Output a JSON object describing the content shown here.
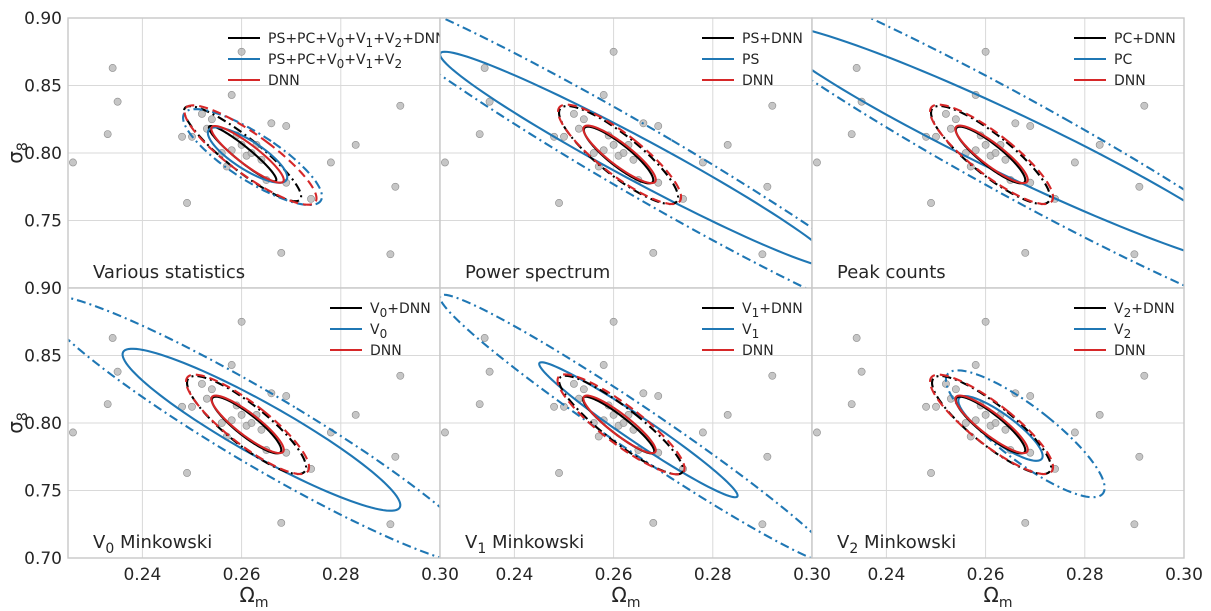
{
  "colors": {
    "black": "#000000",
    "blue": "#1f77b4",
    "red": "#d62728",
    "grid": "#d9d9d9",
    "frame": "#c8c8c8",
    "points": "#b3b3b3"
  },
  "chart_data": {
    "type": "scatter",
    "description_free": true,
    "xlabel": "Ωm",
    "ylabel": "σ8",
    "xlim": [
      0.225,
      0.3
    ],
    "ylim_top_row": [
      0.7,
      0.9
    ],
    "ylim_bottom_row": [
      0.7,
      0.9
    ],
    "x_ticks": [
      "0.24",
      "0.26",
      "0.28",
      "0.30"
    ],
    "y_ticks": [
      "0.70",
      "0.75",
      "0.80",
      "0.85",
      "0.90"
    ],
    "top_row_y_ticks": [
      "0.75",
      "0.80",
      "0.85",
      "0.90"
    ],
    "simulation_points": [
      [
        0.226,
        0.793
      ],
      [
        0.233,
        0.814
      ],
      [
        0.234,
        0.863
      ],
      [
        0.235,
        0.838
      ],
      [
        0.248,
        0.812
      ],
      [
        0.249,
        0.763
      ],
      [
        0.25,
        0.812
      ],
      [
        0.252,
        0.829
      ],
      [
        0.253,
        0.818
      ],
      [
        0.254,
        0.825
      ],
      [
        0.256,
        0.8
      ],
      [
        0.257,
        0.79
      ],
      [
        0.258,
        0.843
      ],
      [
        0.258,
        0.802
      ],
      [
        0.259,
        0.813
      ],
      [
        0.26,
        0.806
      ],
      [
        0.26,
        0.875
      ],
      [
        0.261,
        0.798
      ],
      [
        0.262,
        0.8
      ],
      [
        0.263,
        0.806
      ],
      [
        0.264,
        0.795
      ],
      [
        0.265,
        0.78
      ],
      [
        0.266,
        0.822
      ],
      [
        0.268,
        0.726
      ],
      [
        0.269,
        0.778
      ],
      [
        0.269,
        0.82
      ],
      [
        0.274,
        0.766
      ],
      [
        0.278,
        0.793
      ],
      [
        0.283,
        0.806
      ],
      [
        0.29,
        0.725
      ],
      [
        0.291,
        0.775
      ],
      [
        0.292,
        0.835
      ]
    ],
    "panels": [
      {
        "label": "Various statistics",
        "legend": [
          {
            "text": "PS+PC+V0+V1+V2+DNN",
            "color": "black"
          },
          {
            "text": "PS+PC+V0+V1+V2",
            "color": "blue"
          },
          {
            "text": "DNN",
            "color": "red"
          }
        ],
        "contours": [
          {
            "color": "black",
            "style": "solid",
            "cx": 0.2602,
            "cy": 0.7995,
            "sx": 0.0068,
            "sy": 0.0205,
            "rho": -0.94
          },
          {
            "color": "black",
            "style": "dashdot",
            "cx": 0.2602,
            "cy": 0.7995,
            "sx": 0.0118,
            "sy": 0.0352,
            "rho": -0.9
          },
          {
            "color": "blue",
            "style": "solid",
            "cx": 0.2612,
            "cy": 0.7985,
            "sx": 0.008,
            "sy": 0.0205,
            "rho": -0.8
          },
          {
            "color": "blue",
            "style": "dashdot",
            "cx": 0.2622,
            "cy": 0.797,
            "sx": 0.014,
            "sy": 0.0355,
            "rho": -0.82
          },
          {
            "color": "red",
            "style": "solid",
            "cx": 0.2612,
            "cy": 0.799,
            "sx": 0.0073,
            "sy": 0.021,
            "rho": -0.9
          },
          {
            "color": "red",
            "style": "dashdash",
            "cx": 0.2618,
            "cy": 0.7985,
            "sx": 0.0133,
            "sy": 0.0368,
            "rho": -0.87
          }
        ]
      },
      {
        "label": "Power spectrum",
        "legend": [
          {
            "text": "PS+DNN",
            "color": "black"
          },
          {
            "text": "PS",
            "color": "blue"
          },
          {
            "text": "DNN",
            "color": "red"
          }
        ],
        "contours": [
          {
            "color": "blue",
            "style": "solid",
            "cx": 0.265,
            "cy": 0.795,
            "sx": 0.04,
            "sy": 0.08,
            "rho": -0.975
          },
          {
            "color": "blue",
            "style": "dashdot",
            "cx": 0.265,
            "cy": 0.795,
            "sx": 0.06,
            "sy": 0.13,
            "rho": -0.975
          },
          {
            "color": "black",
            "style": "solid",
            "cx": 0.261,
            "cy": 0.7985,
            "sx": 0.007,
            "sy": 0.021,
            "rho": -0.88
          },
          {
            "color": "black",
            "style": "dashdot",
            "cx": 0.261,
            "cy": 0.7985,
            "sx": 0.012,
            "sy": 0.0363,
            "rho": -0.86
          },
          {
            "color": "red",
            "style": "solid",
            "cx": 0.2612,
            "cy": 0.799,
            "sx": 0.0073,
            "sy": 0.0213,
            "rho": -0.88
          },
          {
            "color": "red",
            "style": "dashdash",
            "cx": 0.2612,
            "cy": 0.799,
            "sx": 0.0124,
            "sy": 0.0368,
            "rho": -0.86
          }
        ]
      },
      {
        "label": "Peak counts",
        "legend": [
          {
            "text": "PC+DNN",
            "color": "black"
          },
          {
            "text": "PC",
            "color": "blue"
          },
          {
            "text": "DNN",
            "color": "red"
          }
        ],
        "contours": [
          {
            "color": "blue",
            "style": "solid",
            "cx": 0.266,
            "cy": 0.805,
            "sx": 0.05,
            "sy": 0.09,
            "rho": -0.96
          },
          {
            "color": "blue",
            "style": "dashdot",
            "cx": 0.266,
            "cy": 0.805,
            "sx": 0.07,
            "sy": 0.145,
            "rho": -0.96
          },
          {
            "color": "black",
            "style": "solid",
            "cx": 0.261,
            "cy": 0.7985,
            "sx": 0.007,
            "sy": 0.021,
            "rho": -0.88
          },
          {
            "color": "black",
            "style": "dashdot",
            "cx": 0.261,
            "cy": 0.7985,
            "sx": 0.012,
            "sy": 0.0363,
            "rho": -0.86
          },
          {
            "color": "red",
            "style": "solid",
            "cx": 0.2612,
            "cy": 0.799,
            "sx": 0.0073,
            "sy": 0.0213,
            "rho": -0.88
          },
          {
            "color": "red",
            "style": "dashdash",
            "cx": 0.2612,
            "cy": 0.799,
            "sx": 0.0124,
            "sy": 0.0368,
            "rho": -0.86
          }
        ]
      },
      {
        "label": "V0 Minkowski",
        "label_main": "V",
        "label_sub": "0",
        "label_rest": " Minkowski",
        "legend": [
          {
            "text": "V0+DNN",
            "color": "black"
          },
          {
            "text": "V0",
            "color": "blue"
          },
          {
            "text": "DNN",
            "color": "red"
          }
        ],
        "contours": [
          {
            "color": "blue",
            "style": "solid",
            "cx": 0.264,
            "cy": 0.795,
            "sx": 0.028,
            "sy": 0.06,
            "rho": -0.93
          },
          {
            "color": "blue",
            "style": "dashdot",
            "cx": 0.264,
            "cy": 0.795,
            "sx": 0.045,
            "sy": 0.1,
            "rho": -0.95
          },
          {
            "color": "black",
            "style": "solid",
            "cx": 0.261,
            "cy": 0.7985,
            "sx": 0.007,
            "sy": 0.021,
            "rho": -0.88
          },
          {
            "color": "black",
            "style": "dashdot",
            "cx": 0.261,
            "cy": 0.7985,
            "sx": 0.012,
            "sy": 0.0363,
            "rho": -0.86
          },
          {
            "color": "red",
            "style": "solid",
            "cx": 0.2612,
            "cy": 0.799,
            "sx": 0.0073,
            "sy": 0.0213,
            "rho": -0.88
          },
          {
            "color": "red",
            "style": "dashdash",
            "cx": 0.2612,
            "cy": 0.799,
            "sx": 0.0124,
            "sy": 0.0368,
            "rho": -0.86
          }
        ]
      },
      {
        "label": "V1 Minkowski",
        "label_main": "V",
        "label_sub": "1",
        "label_rest": " Minkowski",
        "legend": [
          {
            "text": "V1+DNN",
            "color": "black"
          },
          {
            "text": "V1",
            "color": "blue"
          },
          {
            "text": "DNN",
            "color": "red"
          }
        ],
        "contours": [
          {
            "color": "blue",
            "style": "solid",
            "cx": 0.265,
            "cy": 0.795,
            "sx": 0.02,
            "sy": 0.05,
            "rho": -0.975
          },
          {
            "color": "blue",
            "style": "dashdot",
            "cx": 0.265,
            "cy": 0.795,
            "sx": 0.04,
            "sy": 0.1,
            "rho": -0.98
          },
          {
            "color": "black",
            "style": "solid",
            "cx": 0.261,
            "cy": 0.7985,
            "sx": 0.0072,
            "sy": 0.021,
            "rho": -0.92
          },
          {
            "color": "black",
            "style": "dashdot",
            "cx": 0.2615,
            "cy": 0.7985,
            "sx": 0.0125,
            "sy": 0.0365,
            "rho": -0.9
          },
          {
            "color": "red",
            "style": "solid",
            "cx": 0.2612,
            "cy": 0.799,
            "sx": 0.0073,
            "sy": 0.0213,
            "rho": -0.9
          },
          {
            "color": "red",
            "style": "dashdash",
            "cx": 0.2615,
            "cy": 0.799,
            "sx": 0.0128,
            "sy": 0.037,
            "rho": -0.88
          }
        ]
      },
      {
        "label": "V2 Minkowski",
        "label_main": "V",
        "label_sub": "2",
        "label_rest": " Minkowski",
        "legend": [
          {
            "text": "V2+DNN",
            "color": "black"
          },
          {
            "text": "V2",
            "color": "blue"
          },
          {
            "text": "DNN",
            "color": "red"
          }
        ],
        "contours": [
          {
            "color": "blue",
            "style": "solid",
            "cx": 0.263,
            "cy": 0.796,
            "sx": 0.0085,
            "sy": 0.024,
            "rho": -0.85
          },
          {
            "color": "blue",
            "style": "dashdot",
            "cx": 0.268,
            "cy": 0.792,
            "sx": 0.016,
            "sy": 0.047,
            "rho": -0.85
          },
          {
            "color": "black",
            "style": "solid",
            "cx": 0.261,
            "cy": 0.7985,
            "sx": 0.007,
            "sy": 0.021,
            "rho": -0.88
          },
          {
            "color": "black",
            "style": "dashdot",
            "cx": 0.2612,
            "cy": 0.7985,
            "sx": 0.012,
            "sy": 0.0363,
            "rho": -0.86
          },
          {
            "color": "red",
            "style": "solid",
            "cx": 0.2612,
            "cy": 0.799,
            "sx": 0.0073,
            "sy": 0.0213,
            "rho": -0.88
          },
          {
            "color": "red",
            "style": "dashdash",
            "cx": 0.2612,
            "cy": 0.799,
            "sx": 0.0124,
            "sy": 0.0368,
            "rho": -0.86
          }
        ]
      }
    ]
  }
}
